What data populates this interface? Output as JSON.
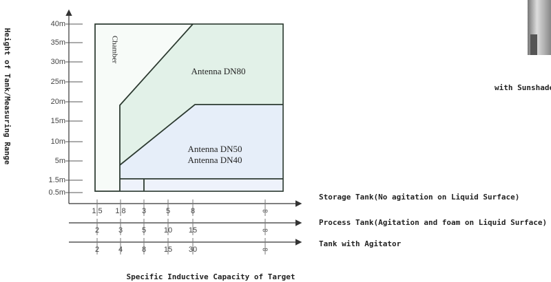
{
  "y_axis": {
    "label": "Height of Tank/Measuring Range",
    "ticks": [
      "40m",
      "35m",
      "30m",
      "25m",
      "20m",
      "15m",
      "10m",
      "5m",
      "1.5m",
      "0.5m"
    ]
  },
  "regions": {
    "chamber": "Chamber",
    "upper": [
      "Antenna DN80"
    ],
    "lower": [
      "Antenna DN50",
      "Antenna DN40"
    ]
  },
  "x_rows": [
    {
      "label": "Storage Tank(No agitation on Liquid Surface)",
      "ticks": [
        "1.5",
        "1.8",
        "3",
        "5",
        "8",
        "∞"
      ]
    },
    {
      "label": "Process Tank(Agitation and foam on Liquid Surface)",
      "ticks": [
        "2",
        "3",
        "5",
        "10",
        "15",
        "∞"
      ]
    },
    {
      "label": "Tank with Agitator",
      "ticks": [
        "2",
        "4",
        "8",
        "15",
        "30",
        "∞"
      ]
    }
  ],
  "x_axis": {
    "label": "Specific Inductive Capacity of Target"
  },
  "side_caption": "with Sunshade"
}
